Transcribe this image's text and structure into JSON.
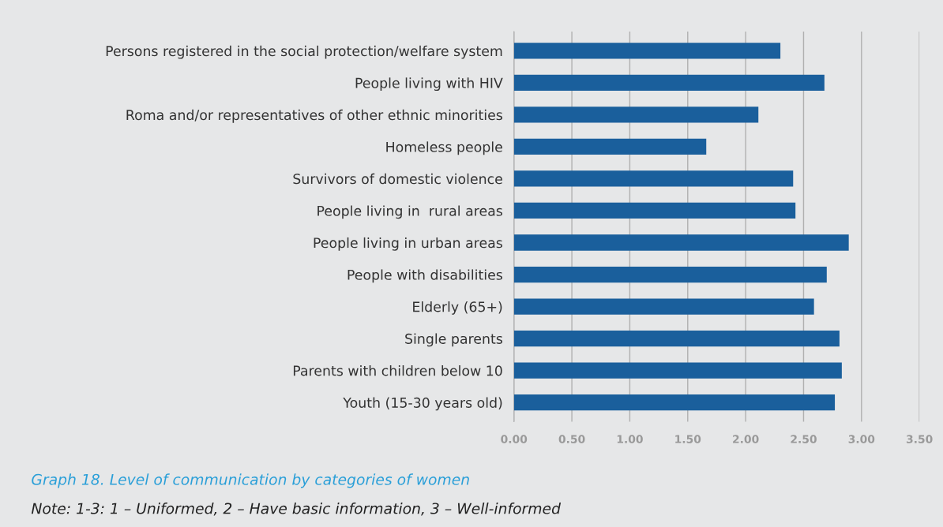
{
  "chart_data": {
    "type": "bar",
    "orientation": "horizontal",
    "title": "Graph 18. Level of communication by categories of women",
    "annotations": [
      "Note: 1-3: 1 – Uniformed, 2 – Have basic information, 3 – Well-informed"
    ],
    "categories": [
      "Persons registered in the social protection/welfare system",
      "People living with HIV",
      "Roma and/or representatives of other ethnic minorities",
      "Homeless people",
      "Survivors of domestic violence",
      "People living in  rural areas",
      "People living in urban areas",
      "People with disabilities",
      "Elderly (65+)",
      "Single parents",
      "Parents with children below 10",
      "Youth (15-30 years old)"
    ],
    "values": [
      2.3,
      2.68,
      2.11,
      1.66,
      2.41,
      2.43,
      2.89,
      2.7,
      2.59,
      2.81,
      2.83,
      2.77
    ],
    "color": "#1a5f9c",
    "xlim": [
      0,
      3.5
    ],
    "xticks": [
      {
        "value": 0,
        "label": "0.00"
      },
      {
        "value": 0.5,
        "label": "0.50"
      },
      {
        "value": 1,
        "label": "1.00"
      },
      {
        "value": 1.5,
        "label": "1.50"
      },
      {
        "value": 2,
        "label": "2.00"
      },
      {
        "value": 2.5,
        "label": "2.50"
      },
      {
        "value": 3,
        "label": "3.00"
      },
      {
        "value": 3.5,
        "label": "3.50"
      }
    ],
    "grid": "x"
  }
}
